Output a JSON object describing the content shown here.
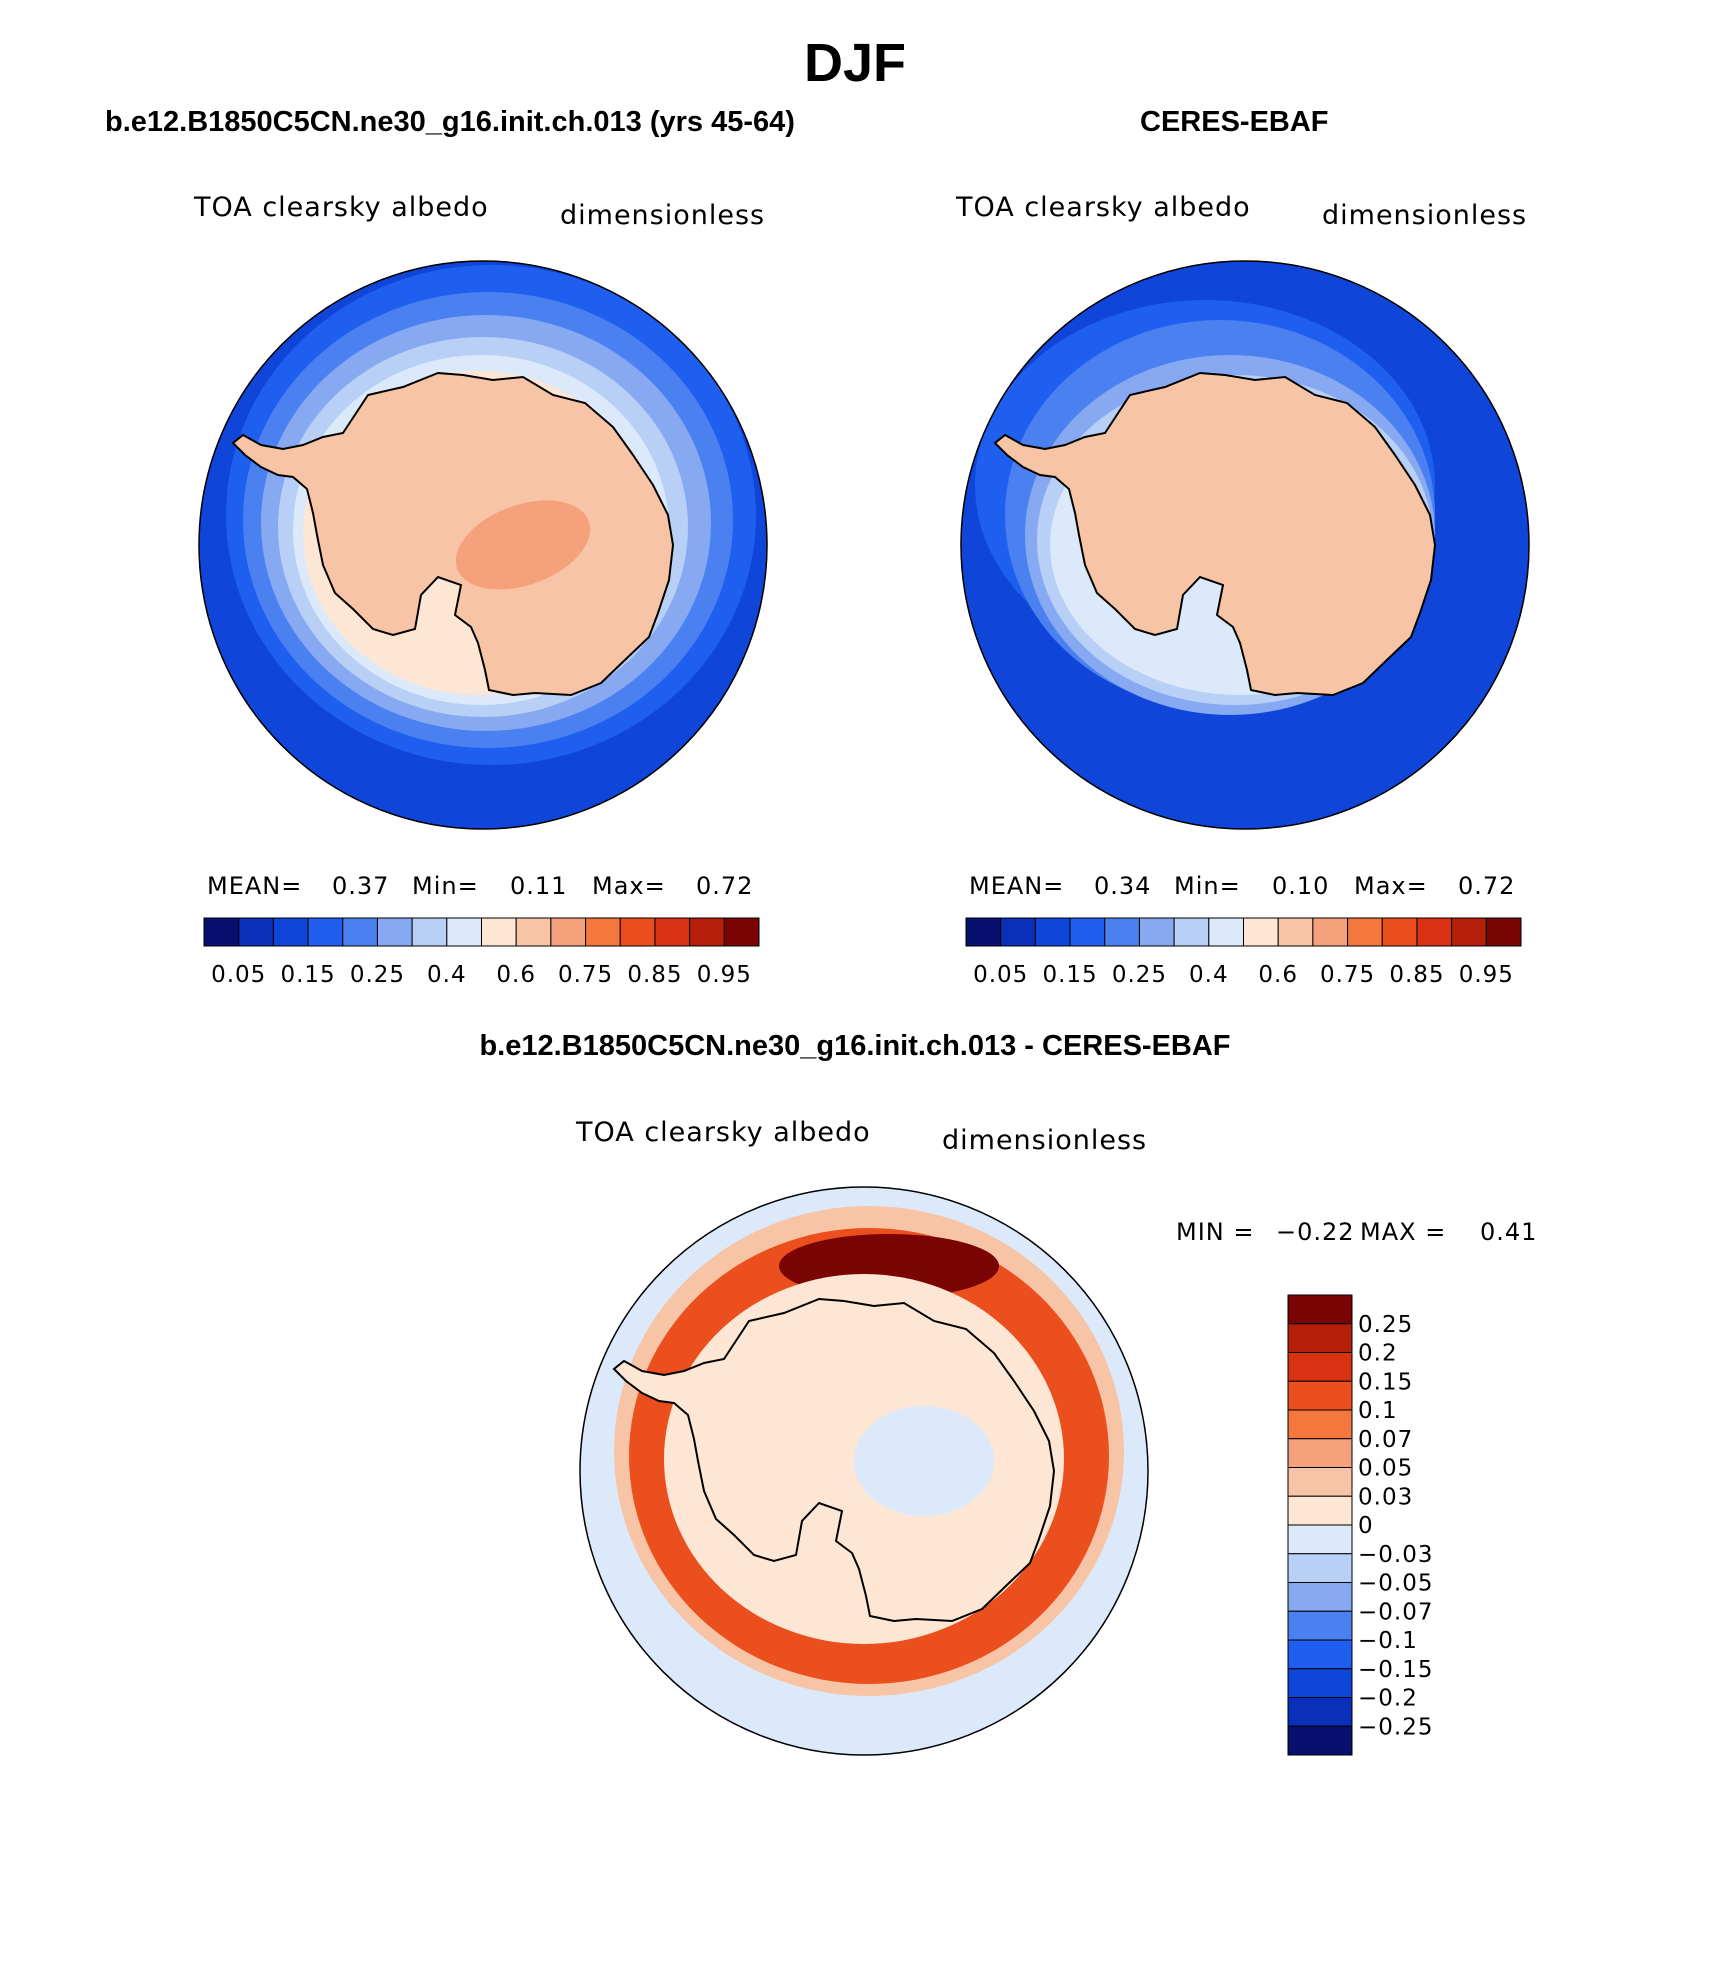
{
  "title": "DJF",
  "panels": [
    {
      "id": "model",
      "title": "b.e12.B1850C5CN.ne30_g16.init.ch.013 (yrs 45-64)",
      "variable": "TOA clearsky albedo",
      "units": "dimensionless",
      "stats": {
        "mean_label": "MEAN=",
        "mean": "0.37",
        "min_label": "Min=",
        "min": "0.11",
        "max_label": "Max=",
        "max": "0.72"
      }
    },
    {
      "id": "obs",
      "title": "CERES-EBAF",
      "variable": "TOA clearsky albedo",
      "units": "dimensionless",
      "stats": {
        "mean_label": "MEAN=",
        "mean": "0.34",
        "min_label": "Min=",
        "min": "0.10",
        "max_label": "Max=",
        "max": "0.72"
      }
    }
  ],
  "colorbar_abs": {
    "tick_labels": [
      "0.05",
      "0.15",
      "0.25",
      "0.4",
      "0.6",
      "0.75",
      "0.85",
      "0.95"
    ],
    "colors": [
      "#08106e",
      "#0a2fb8",
      "#0f45d8",
      "#1e5ff0",
      "#4b80f0",
      "#86a9f2",
      "#b8cff6",
      "#dce9fb",
      "#fde6d4",
      "#f8c4a6",
      "#f5a27c",
      "#f4773e",
      "#ec4f1e",
      "#d83212",
      "#b51f0a",
      "#7a0403"
    ]
  },
  "diff_panel": {
    "title": "b.e12.B1850C5CN.ne30_g16.init.ch.013 - CERES-EBAF",
    "variable": "TOA clearsky albedo",
    "units": "dimensionless",
    "stats": {
      "min_label": "MIN =",
      "min": "−0.22",
      "max_label": "MAX =",
      "max": "0.41"
    }
  },
  "colorbar_diff": {
    "tick_labels": [
      "0.25",
      "0.2",
      "0.15",
      "0.1",
      "0.07",
      "0.05",
      "0.03",
      "0",
      "−0.03",
      "−0.05",
      "−0.07",
      "−0.1",
      "−0.15",
      "−0.2",
      "−0.25"
    ],
    "colors": [
      "#7a0403",
      "#b51f0a",
      "#d83212",
      "#ec4f1e",
      "#f4773e",
      "#f5a27c",
      "#f8c4a6",
      "#fde6d4",
      "#dce9fb",
      "#b8cff6",
      "#86a9f2",
      "#4b80f0",
      "#1e5ff0",
      "#0f45d8",
      "#0a2fb8",
      "#08106e"
    ]
  },
  "colors": {
    "ocean_abs": "#0f45d8",
    "ice_abs": "#f8c4a6",
    "ice_max_abs": "#f5a27c",
    "ocean_diff": "#dce9fb",
    "positive_ring": "#ec4f1e",
    "positive_max": "#7a0403"
  }
}
